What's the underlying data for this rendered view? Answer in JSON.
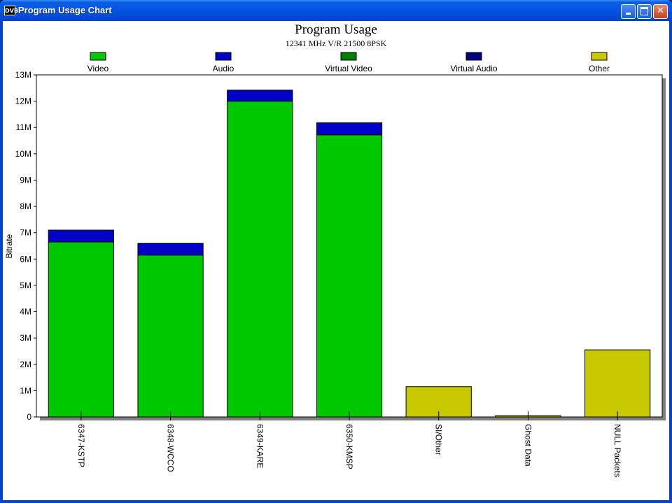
{
  "window": {
    "title": "Program Usage Chart",
    "app_icon": "DVB",
    "buttons": {
      "minimize": "minimize-icon",
      "maximize": "maximize-icon",
      "close": "close-icon"
    }
  },
  "chart_data": {
    "type": "bar",
    "stacked": true,
    "title": "Program Usage",
    "subtitle": "12341 MHz V/R 21500 8PSK",
    "xlabel": "",
    "ylabel": "Bitrate",
    "ylim": [
      0,
      13000000
    ],
    "y_ticks": [
      0,
      1000000,
      2000000,
      3000000,
      4000000,
      5000000,
      6000000,
      7000000,
      8000000,
      9000000,
      10000000,
      11000000,
      12000000,
      13000000
    ],
    "y_tick_labels": [
      "0",
      "1M",
      "2M",
      "3M",
      "4M",
      "5M",
      "6M",
      "7M",
      "8M",
      "9M",
      "10M",
      "11M",
      "12M",
      "13M"
    ],
    "categories": [
      "6347-KSTP",
      "6348-WCCO",
      "6349-KARE",
      "6350-KMSP",
      "SI/Other",
      "Ghost Data",
      "NULL Packets"
    ],
    "series": [
      {
        "name": "Video",
        "color": "#00c800",
        "values": [
          6650000,
          6150000,
          12000000,
          10720000,
          0,
          0,
          0
        ]
      },
      {
        "name": "Audio",
        "color": "#0000c8",
        "values": [
          450000,
          450000,
          420000,
          460000,
          0,
          0,
          0
        ]
      },
      {
        "name": "Virtual Video",
        "color": "#008000",
        "values": [
          0,
          0,
          0,
          0,
          0,
          0,
          0
        ]
      },
      {
        "name": "Virtual Audio",
        "color": "#000080",
        "values": [
          0,
          0,
          0,
          0,
          0,
          0,
          0
        ]
      },
      {
        "name": "Other",
        "color": "#c8c800",
        "values": [
          0,
          0,
          0,
          0,
          1150000,
          50000,
          2550000
        ]
      }
    ],
    "legend_position": "top",
    "grid": false,
    "background": "#ffffff",
    "frame_shadow": "#808080"
  }
}
